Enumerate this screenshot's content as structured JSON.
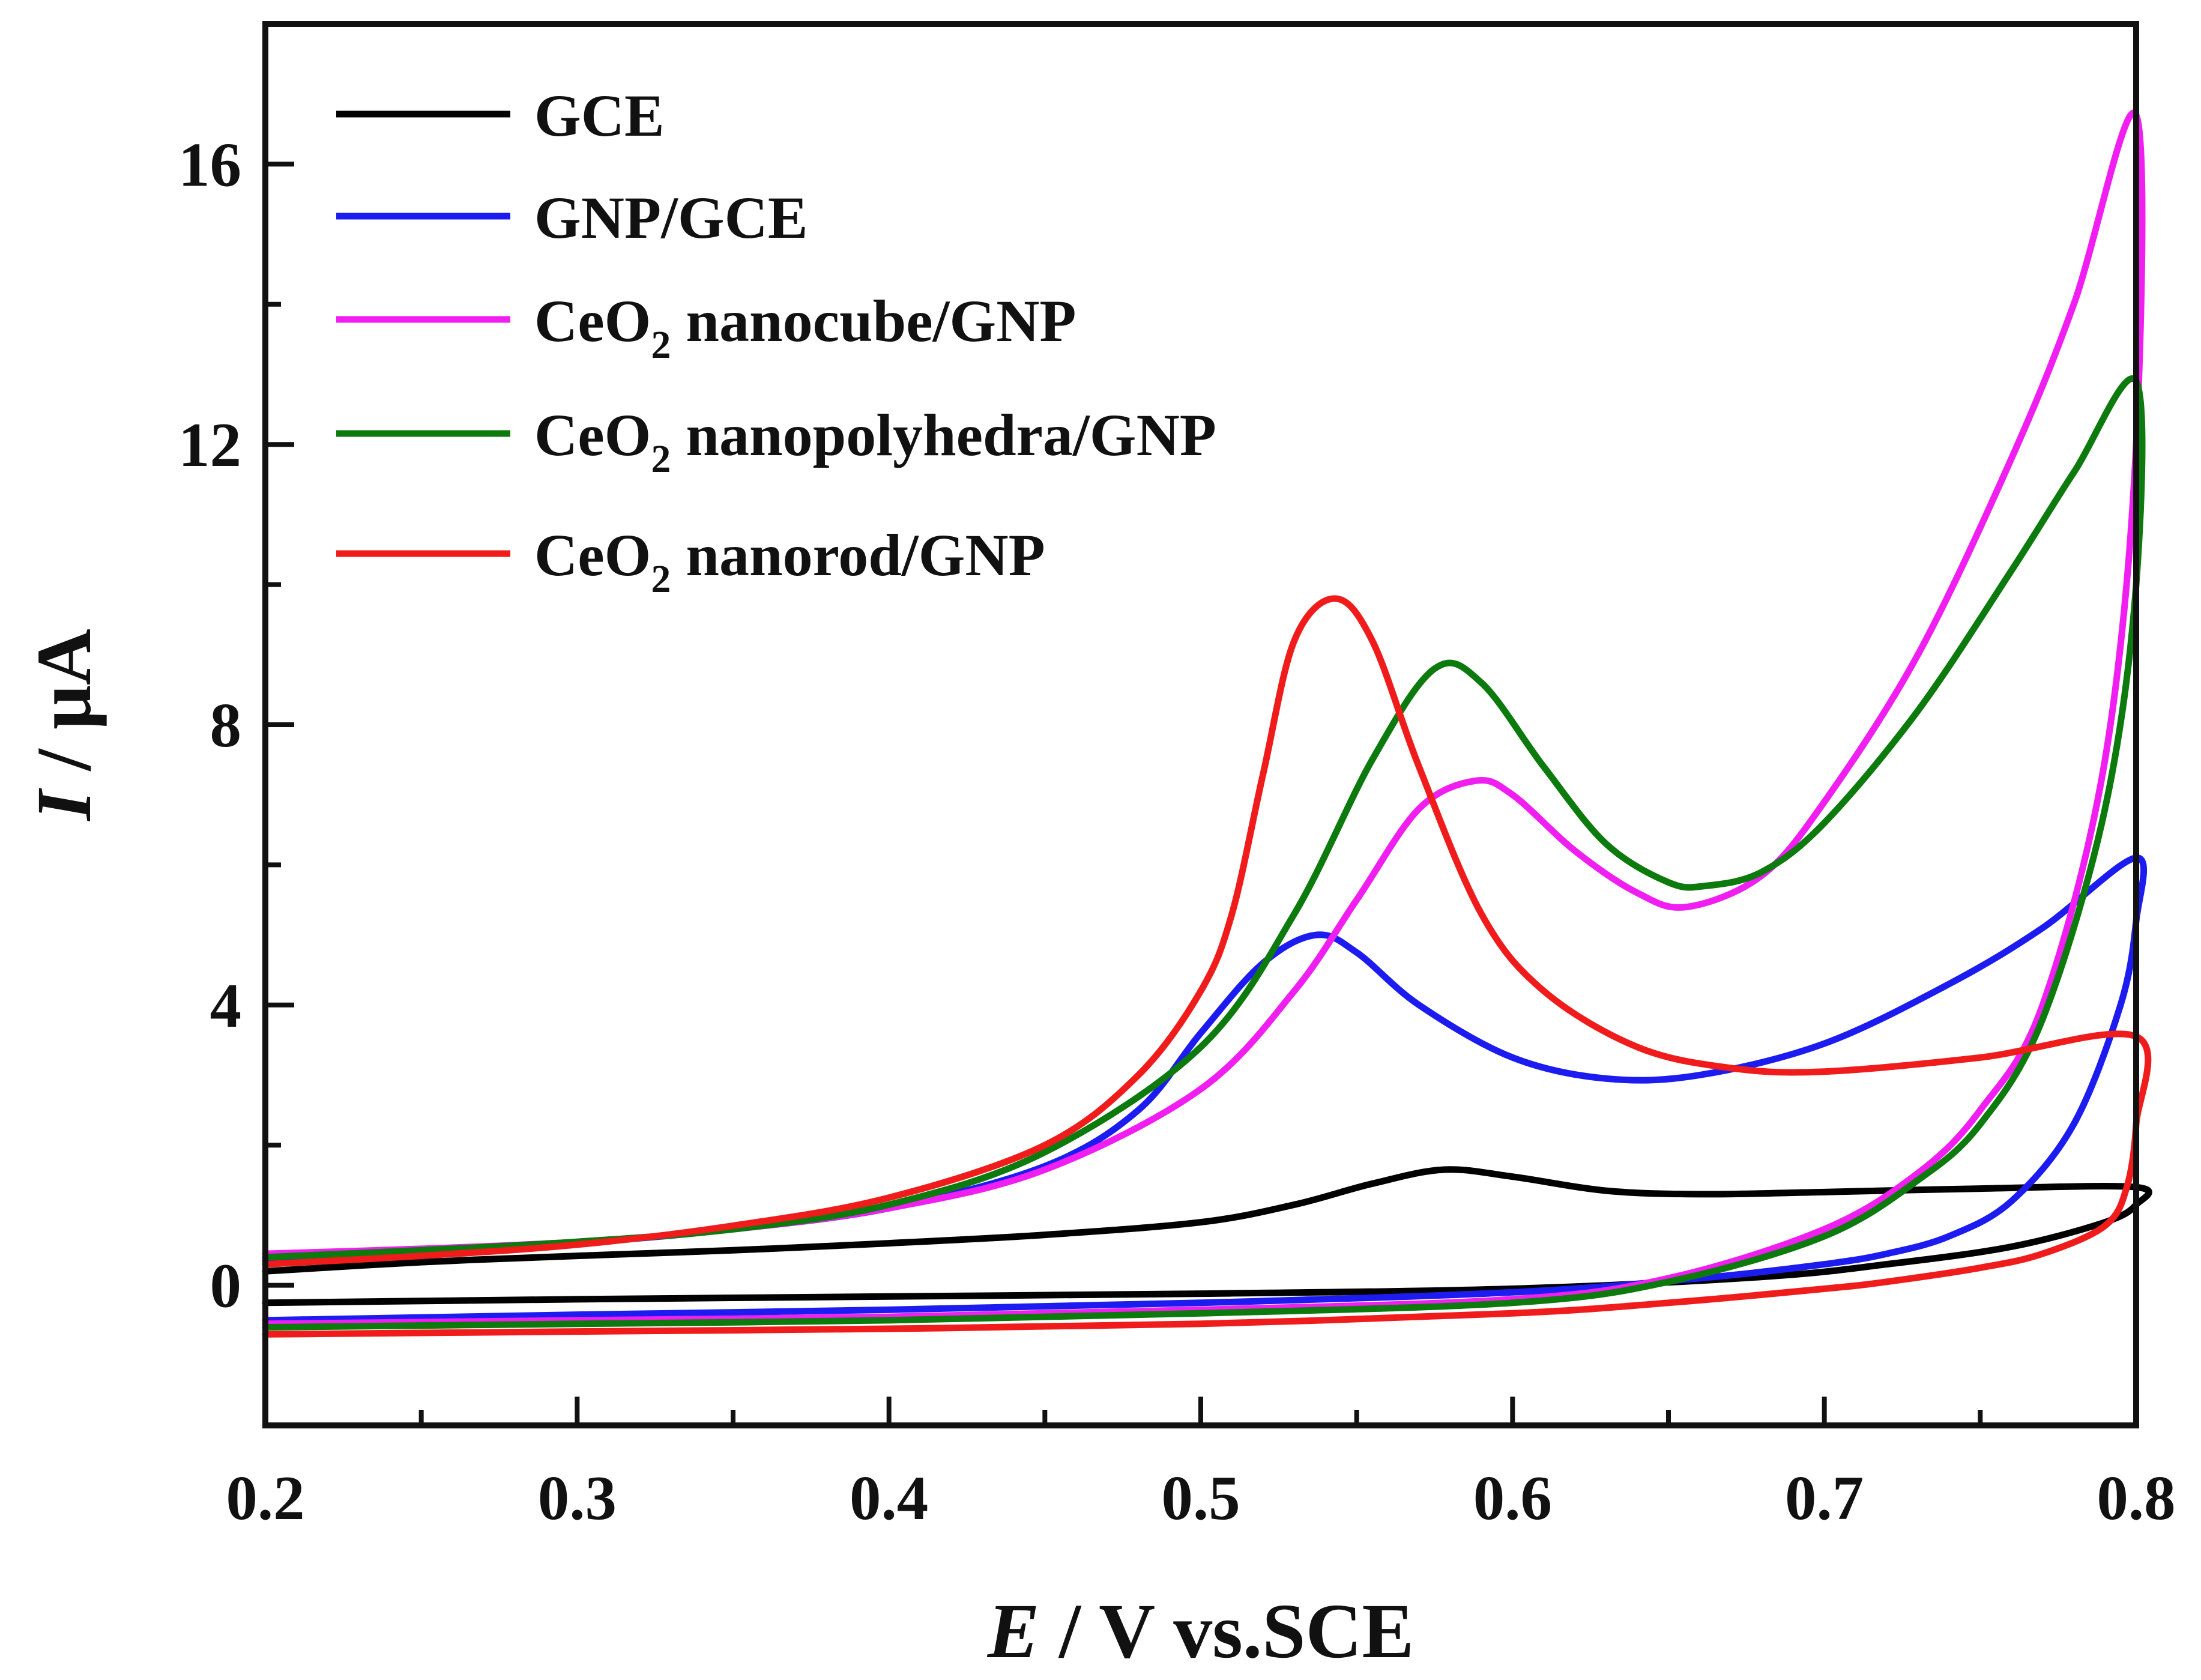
{
  "chart_data": {
    "type": "line",
    "title": "",
    "xlabel": {
      "italic": "E",
      "rest": " / V vs.SCE"
    },
    "ylabel": {
      "italic": "I",
      "rest": " / μA"
    },
    "xlim": [
      0.2,
      0.8
    ],
    "ylim": [
      -2,
      18
    ],
    "xticks": [
      "0.2",
      "0.3",
      "0.4",
      "0.5",
      "0.6",
      "0.7",
      "0.8"
    ],
    "xtick_values": [
      0.2,
      0.3,
      0.4,
      0.5,
      0.6,
      0.7,
      0.8
    ],
    "yticks": [
      "0",
      "4",
      "8",
      "12",
      "16"
    ],
    "ytick_values": [
      0,
      4,
      8,
      12,
      16
    ],
    "grid": false,
    "legend_position": "top-left",
    "series": [
      {
        "name": "GCE",
        "legend": {
          "pre": "GCE",
          "sub": "",
          "post": ""
        },
        "color": "#000000",
        "x": [
          0.2,
          0.25,
          0.3,
          0.35,
          0.4,
          0.45,
          0.5,
          0.53,
          0.555,
          0.578,
          0.6,
          0.63,
          0.66,
          0.7,
          0.75,
          0.8,
          0.8,
          0.79,
          0.76,
          0.72,
          0.68,
          0.6,
          0.5,
          0.4,
          0.3,
          0.2
        ],
        "y": [
          0.2,
          0.33,
          0.42,
          0.5,
          0.6,
          0.72,
          0.9,
          1.15,
          1.45,
          1.65,
          1.55,
          1.35,
          1.3,
          1.33,
          1.38,
          1.4,
          1.15,
          0.9,
          0.55,
          0.3,
          0.12,
          -0.05,
          -0.12,
          -0.16,
          -0.2,
          -0.25
        ]
      },
      {
        "name": "GNP/GCE",
        "legend": {
          "pre": "GNP/GCE",
          "sub": "",
          "post": ""
        },
        "color": "#1c1cf0",
        "x": [
          0.2,
          0.25,
          0.3,
          0.35,
          0.4,
          0.45,
          0.48,
          0.5,
          0.52,
          0.537,
          0.55,
          0.57,
          0.6,
          0.63,
          0.66,
          0.7,
          0.74,
          0.77,
          0.8,
          0.8,
          0.795,
          0.78,
          0.76,
          0.74,
          0.72,
          0.7,
          0.66,
          0.6,
          0.5,
          0.4,
          0.3,
          0.2
        ],
        "y": [
          0.35,
          0.45,
          0.6,
          0.8,
          1.1,
          1.7,
          2.5,
          3.6,
          4.6,
          5.0,
          4.75,
          4.0,
          3.25,
          2.95,
          3.0,
          3.45,
          4.3,
          5.1,
          6.1,
          5.2,
          4.0,
          2.3,
          1.2,
          0.7,
          0.45,
          0.3,
          0.1,
          -0.1,
          -0.25,
          -0.35,
          -0.42,
          -0.5
        ]
      },
      {
        "name": "CeO2 nanocube/GNP",
        "legend": {
          "pre": "CeO",
          "sub": "2",
          "post": " nanocube/GNP"
        },
        "color": "#f01ef0",
        "x": [
          0.2,
          0.25,
          0.3,
          0.35,
          0.4,
          0.45,
          0.5,
          0.53,
          0.55,
          0.57,
          0.588,
          0.6,
          0.62,
          0.64,
          0.656,
          0.68,
          0.7,
          0.73,
          0.76,
          0.78,
          0.8,
          0.8,
          0.79,
          0.77,
          0.75,
          0.73,
          0.7,
          0.65,
          0.6,
          0.5,
          0.4,
          0.3,
          0.2
        ],
        "y": [
          0.45,
          0.52,
          0.62,
          0.8,
          1.1,
          1.65,
          2.8,
          4.2,
          5.5,
          6.8,
          7.2,
          7.0,
          6.2,
          5.6,
          5.4,
          5.85,
          6.9,
          9.0,
          11.8,
          14.0,
          16.7,
          12.0,
          7.5,
          4.0,
          2.5,
          1.6,
          0.8,
          0.1,
          -0.2,
          -0.35,
          -0.45,
          -0.5,
          -0.55
        ]
      },
      {
        "name": "CeO2 nanopolyhedra/GNP",
        "legend": {
          "pre": "CeO",
          "sub": "2",
          "post": " nanopolyhedra/GNP"
        },
        "color": "#0c7a0c",
        "x": [
          0.2,
          0.25,
          0.3,
          0.35,
          0.4,
          0.45,
          0.5,
          0.53,
          0.555,
          0.575,
          0.59,
          0.61,
          0.63,
          0.65,
          0.662,
          0.68,
          0.7,
          0.73,
          0.76,
          0.78,
          0.8,
          0.8,
          0.79,
          0.77,
          0.75,
          0.73,
          0.7,
          0.65,
          0.6,
          0.5,
          0.4,
          0.3,
          0.2
        ],
        "y": [
          0.4,
          0.5,
          0.62,
          0.8,
          1.15,
          1.9,
          3.4,
          5.3,
          7.5,
          8.8,
          8.6,
          7.4,
          6.3,
          5.75,
          5.7,
          5.9,
          6.6,
          8.2,
          10.2,
          11.6,
          12.9,
          10.0,
          6.8,
          3.8,
          2.3,
          1.5,
          0.7,
          0.05,
          -0.25,
          -0.4,
          -0.5,
          -0.55,
          -0.6
        ]
      },
      {
        "name": "CeO2 nanorod/GNP",
        "legend": {
          "pre": "CeO",
          "sub": "2",
          "post": " nanorod/GNP"
        },
        "color": "#f01c1c",
        "x": [
          0.2,
          0.25,
          0.3,
          0.35,
          0.4,
          0.45,
          0.48,
          0.5,
          0.51,
          0.52,
          0.53,
          0.543,
          0.555,
          0.57,
          0.59,
          0.61,
          0.64,
          0.67,
          0.7,
          0.75,
          0.8,
          0.8,
          0.797,
          0.79,
          0.77,
          0.75,
          0.72,
          0.7,
          0.65,
          0.6,
          0.5,
          0.4,
          0.3,
          0.2
        ],
        "y": [
          0.3,
          0.42,
          0.58,
          0.85,
          1.25,
          2.0,
          3.0,
          4.2,
          5.3,
          7.3,
          9.2,
          9.8,
          9.2,
          7.4,
          5.3,
          4.2,
          3.4,
          3.1,
          3.05,
          3.25,
          3.55,
          2.3,
          1.4,
          0.85,
          0.45,
          0.25,
          0.05,
          -0.05,
          -0.25,
          -0.4,
          -0.55,
          -0.62,
          -0.66,
          -0.7
        ]
      }
    ]
  }
}
